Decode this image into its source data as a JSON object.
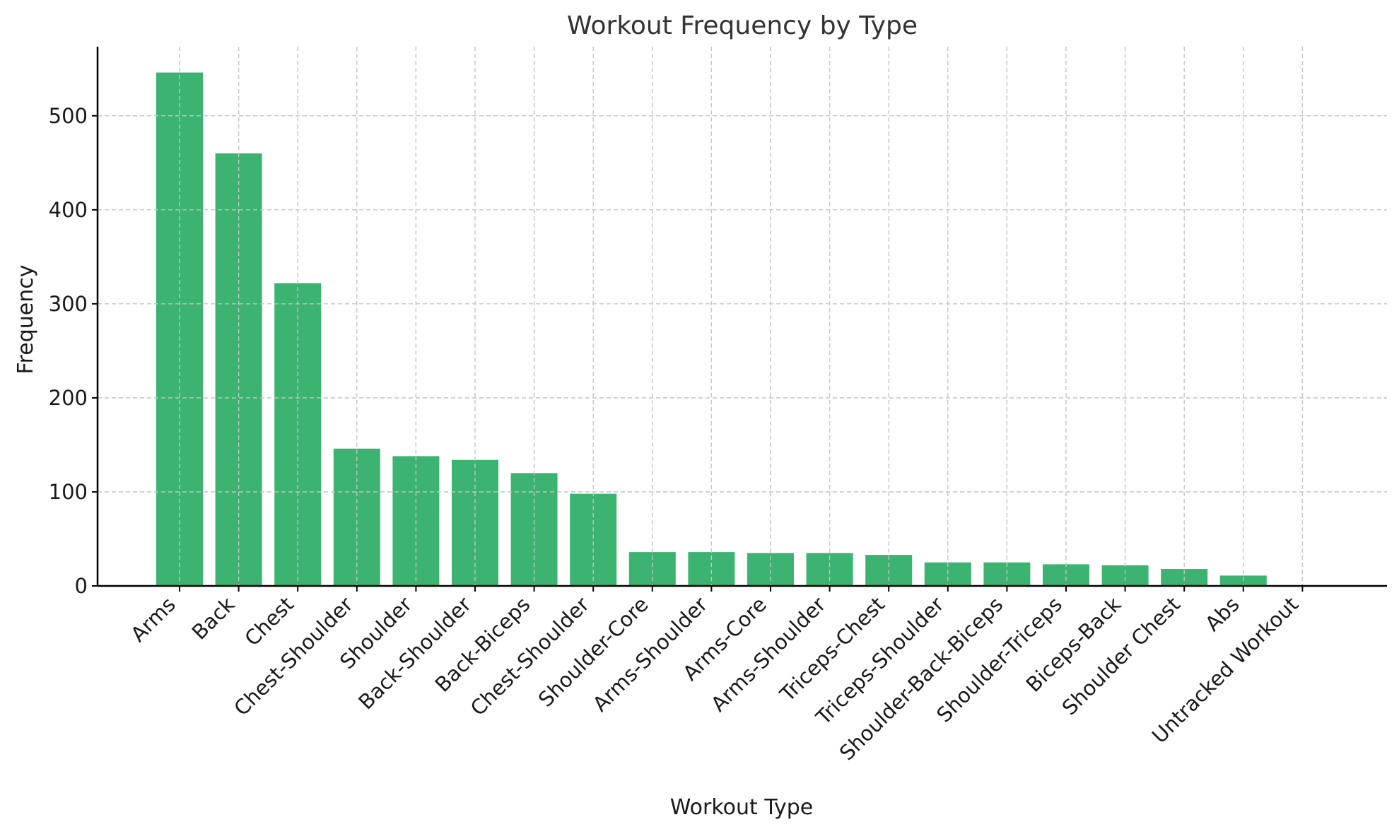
{
  "chart_data": {
    "type": "bar",
    "title": "Workout Frequency by Type",
    "xlabel": "Workout Type",
    "ylabel": "Frequency",
    "categories": [
      "Arms",
      "Back",
      "Chest",
      "Chest-Shoulder",
      "Shoulder",
      "Back-Shoulder",
      "Back-Biceps",
      "Chest-Shoulder",
      "Shoulder-Core",
      "Arms-Shoulder",
      "Arms-Core",
      "Arms-Shoulder",
      "Triceps-Chest",
      "Triceps-Shoulder",
      "Shoulder-Back-Biceps",
      "Shoulder-Triceps",
      "Biceps-Back",
      "Shoulder Chest",
      "Abs",
      "Untracked Workout"
    ],
    "values": [
      546,
      460,
      322,
      146,
      138,
      134,
      120,
      98,
      36,
      36,
      35,
      35,
      33,
      25,
      25,
      23,
      22,
      18,
      11,
      0
    ],
    "yticks": [
      0,
      100,
      200,
      300,
      400,
      500
    ],
    "ylim": [
      0,
      573
    ],
    "grid": true,
    "colors": {
      "bar": "#3cb371",
      "grid": "#c8c8c8",
      "axis": "#000000"
    }
  }
}
